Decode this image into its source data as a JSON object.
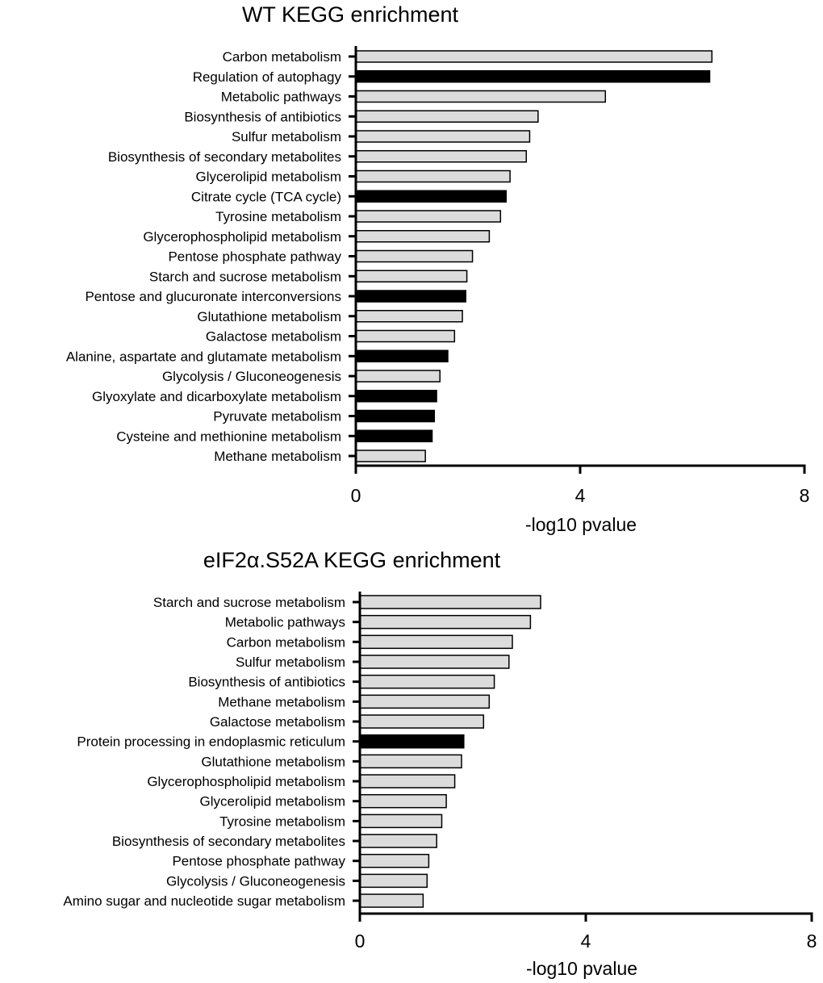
{
  "chart_data": [
    {
      "type": "bar",
      "orientation": "horizontal",
      "title": "WT KEGG enrichment",
      "xlabel": "-log10 pvalue",
      "ylabel": "",
      "xlim": [
        0,
        8
      ],
      "xticks": [
        0,
        4,
        8
      ],
      "grid": false,
      "colors": {
        "light": "#dcdcdc",
        "dark": "#000000"
      },
      "categories": [
        "Carbon metabolism",
        "Regulation of autophagy",
        "Metabolic pathways",
        "Biosynthesis of antibiotics",
        "Sulfur metabolism",
        "Biosynthesis of secondary metabolites",
        "Glycerolipid metabolism",
        "Citrate cycle (TCA cycle)",
        "Tyrosine metabolism",
        "Glycerophospholipid metabolism",
        "Pentose phosphate pathway",
        "Starch and sucrose metabolism",
        "Pentose and glucuronate interconversions",
        "Glutathione metabolism",
        "Galactose metabolism",
        "Alanine, aspartate and glutamate metabolism",
        "Glycolysis / Gluconeogenesis",
        "Glyoxylate and dicarboxylate metabolism",
        "Pyruvate metabolism",
        "Cysteine and methionine metabolism",
        "Methane metabolism"
      ],
      "values": [
        6.35,
        6.31,
        4.45,
        3.25,
        3.1,
        3.04,
        2.75,
        2.68,
        2.58,
        2.38,
        2.08,
        1.98,
        1.96,
        1.9,
        1.76,
        1.64,
        1.5,
        1.44,
        1.4,
        1.36,
        1.24
      ],
      "highlighted": [
        false,
        true,
        false,
        false,
        false,
        false,
        false,
        true,
        false,
        false,
        false,
        false,
        true,
        false,
        false,
        true,
        false,
        true,
        true,
        true,
        false
      ]
    },
    {
      "type": "bar",
      "orientation": "horizontal",
      "title": "eIF2α.S52A KEGG enrichment",
      "xlabel": "-log10 pvalue",
      "ylabel": "",
      "xlim": [
        0,
        8
      ],
      "xticks": [
        0,
        4,
        8
      ],
      "grid": false,
      "colors": {
        "light": "#dcdcdc",
        "dark": "#000000"
      },
      "categories": [
        "Starch and sucrose metabolism",
        "Metabolic pathways",
        "Carbon metabolism",
        "Sulfur metabolism",
        "Biosynthesis of antibiotics",
        "Methane metabolism",
        "Galactose metabolism",
        "Protein processing in endoplasmic reticulum",
        "Glutathione metabolism",
        "Glycerophospholipid metabolism",
        "Glycerolipid metabolism",
        "Tyrosine metabolism",
        "Biosynthesis of secondary metabolites",
        "Pentose phosphate pathway",
        "Glycolysis / Gluconeogenesis",
        "Amino sugar and nucleotide sugar metabolism"
      ],
      "values": [
        3.2,
        3.02,
        2.7,
        2.64,
        2.38,
        2.29,
        2.19,
        1.84,
        1.8,
        1.68,
        1.53,
        1.45,
        1.36,
        1.22,
        1.19,
        1.12
      ],
      "highlighted": [
        false,
        false,
        false,
        false,
        false,
        false,
        false,
        true,
        false,
        false,
        false,
        false,
        false,
        false,
        false,
        false
      ]
    }
  ]
}
